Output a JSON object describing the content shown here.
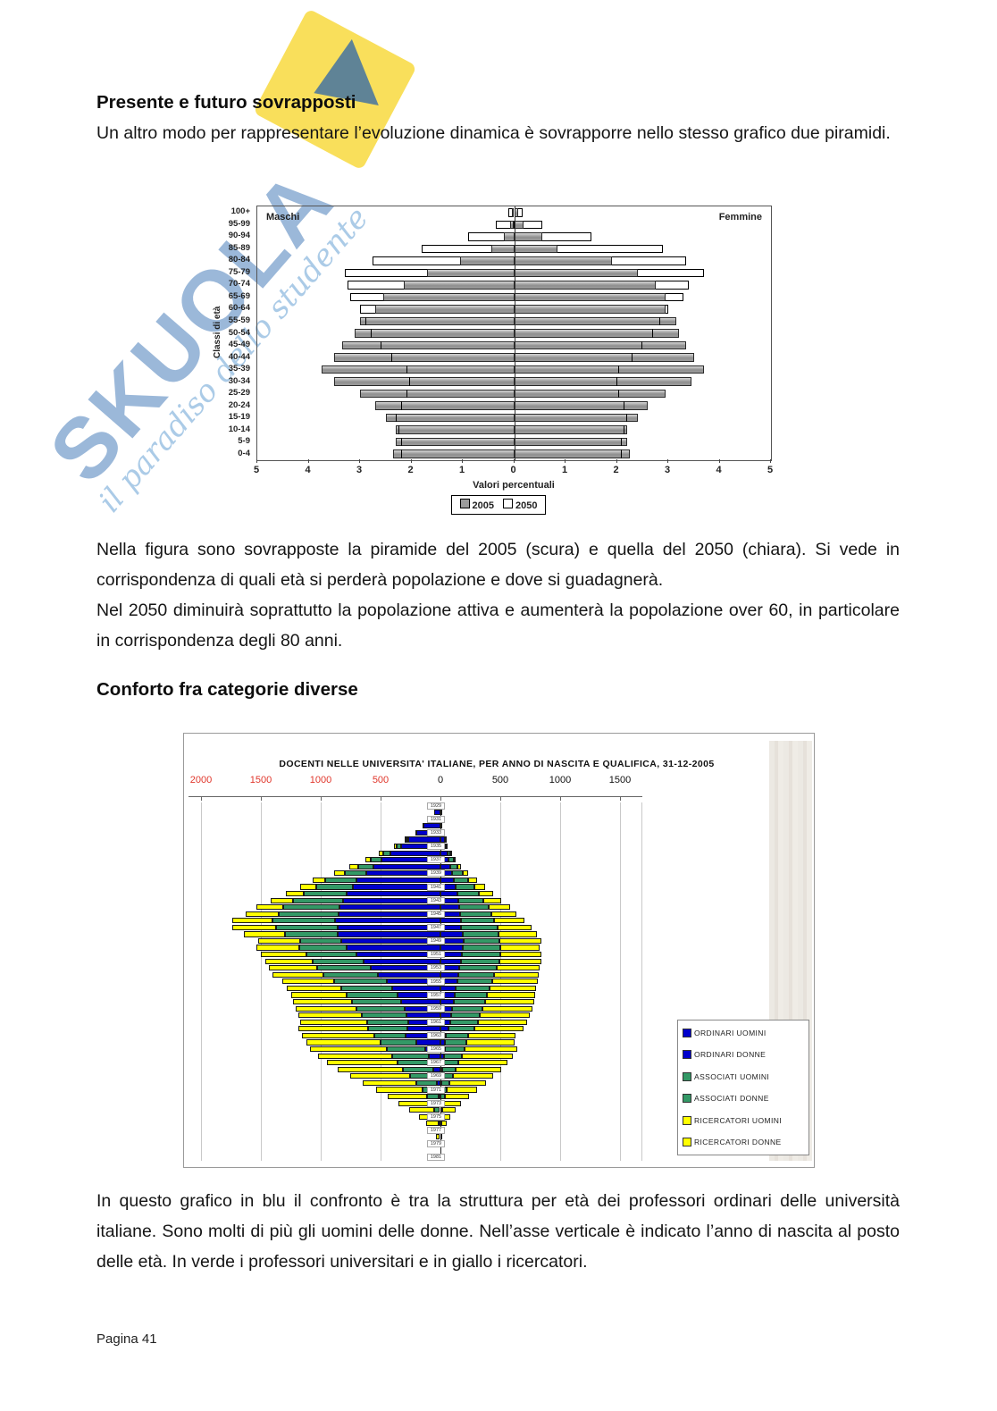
{
  "page": {
    "heading1": "Presente e futuro sovrapposti",
    "para1": "Un altro modo per rappresentare l’evoluzione dinamica è sovrapporre nello stesso grafico due piramidi.",
    "para2a": "Nella figura sono sovrapposte la piramide del 2005 (scura) e quella del 2050 (chiara). Si vede in corrispondenza di quali età si perderà popolazione e dove si guadagnerà.",
    "para2b": "Nel 2050 diminuirà soprattutto la popolazione attiva e aumenterà la popolazione over 60, in particolare in corrispondenza degli 80 anni.",
    "heading2": "Conforto fra categorie diverse",
    "para3": "In questo grafico in blu il confronto è tra la struttura per età dei professori ordinari delle università italiane. Sono molti di più gli uomini delle donne. Nell’asse verticale è indicato l’anno di nascita al posto delle età. In verde i professori universitari e in giallo i ricercatori.",
    "page_number": "Pagina 41"
  },
  "watermark": {
    "brand": "SKUOLA",
    "tagline": "il paradiso dello studente",
    "brand_color": "#2f6ab0",
    "flag_color": "#f8d93e"
  },
  "chart_data": [
    {
      "type": "bar",
      "subtype": "overlaid-population-pyramid",
      "left_label": "Maschi",
      "right_label": "Femmine",
      "ylabel": "Classi di età",
      "xlabel": "Valori percentuali",
      "legend": [
        "2005",
        "2050"
      ],
      "xticks": [
        "5",
        "4",
        "3",
        "2",
        "1",
        "0",
        "1",
        "2",
        "3",
        "4",
        "5"
      ],
      "xmax_percent": 5,
      "ages": [
        "100+",
        "95-99",
        "90-94",
        "85-89",
        "80-84",
        "75-79",
        "70-74",
        "65-69",
        "60-64",
        "55-59",
        "50-54",
        "45-49",
        "40-44",
        "35-39",
        "30-34",
        "25-29",
        "20-24",
        "15-19",
        "10-14",
        "5-9",
        "0-4"
      ],
      "maschi_2005": [
        0.04,
        0.08,
        0.2,
        0.45,
        1.05,
        1.7,
        2.15,
        2.55,
        2.7,
        3.0,
        3.1,
        3.35,
        3.5,
        3.75,
        3.5,
        3.0,
        2.7,
        2.5,
        2.3,
        2.3,
        2.35
      ],
      "femmine_2005": [
        0.08,
        0.18,
        0.55,
        0.85,
        1.9,
        2.4,
        2.75,
        2.95,
        2.95,
        3.15,
        3.2,
        3.35,
        3.5,
        3.7,
        3.45,
        2.95,
        2.6,
        2.4,
        2.2,
        2.2,
        2.25
      ],
      "maschi_2050": [
        0.12,
        0.35,
        0.9,
        1.8,
        2.75,
        3.3,
        3.25,
        3.2,
        3.0,
        2.9,
        2.8,
        2.6,
        2.4,
        2.1,
        2.05,
        2.1,
        2.2,
        2.3,
        2.25,
        2.2,
        2.2
      ],
      "femmine_2050": [
        0.17,
        0.55,
        1.5,
        2.9,
        3.35,
        3.7,
        3.4,
        3.3,
        3.0,
        2.85,
        2.7,
        2.5,
        2.3,
        2.05,
        2.0,
        2.05,
        2.15,
        2.2,
        2.15,
        2.1,
        2.1
      ],
      "colors": {
        "serie_2005": "#9c9c9c",
        "serie_2050": "#ffffff"
      }
    },
    {
      "type": "bar",
      "subtype": "stacked-pyramid-by-birth-year",
      "title": "DOCENTI NELLE UNIVERSITA' ITALIANE, PER ANNO DI NASCITA E QUALIFICA, 31-12-2005",
      "xticks": [
        -2000,
        -1500,
        -1000,
        -500,
        0,
        500,
        1000,
        1500
      ],
      "negative_tick_color": "#e0362b",
      "legend": [
        {
          "label": "ORDINARI UOMINI",
          "color": "#0000cc"
        },
        {
          "label": "ORDINARI DONNE",
          "color": "#0000cc"
        },
        {
          "label": "ASSOCIATI UOMINI",
          "color": "#339966"
        },
        {
          "label": "ASSOCIATI DONNE",
          "color": "#339966"
        },
        {
          "label": "RICERCATORI UOMINI",
          "color": "#ffff00"
        },
        {
          "label": "RICERCATORI DONNE",
          "color": "#ffff00"
        }
      ],
      "years": [
        1929,
        1930,
        1931,
        1932,
        1933,
        1934,
        1935,
        1936,
        1937,
        1938,
        1939,
        1940,
        1941,
        1942,
        1943,
        1944,
        1945,
        1946,
        1947,
        1948,
        1949,
        1950,
        1951,
        1952,
        1953,
        1954,
        1955,
        1956,
        1957,
        1958,
        1959,
        1960,
        1961,
        1962,
        1963,
        1964,
        1965,
        1966,
        1967,
        1968,
        1969,
        1970,
        1971,
        1972,
        1973,
        1974,
        1975,
        1976,
        1977,
        1978,
        1979,
        1980,
        1981
      ],
      "uomini": {
        "ordinari": [
          30,
          55,
          90,
          140,
          200,
          265,
          330,
          420,
          490,
          560,
          620,
          700,
          730,
          780,
          810,
          840,
          850,
          880,
          860,
          855,
          830,
          780,
          700,
          640,
          580,
          520,
          450,
          400,
          360,
          330,
          300,
          280,
          265,
          275,
          290,
          200,
          130,
          100,
          80,
          60,
          45,
          30,
          20,
          12,
          8,
          5,
          3,
          2,
          1,
          0,
          0,
          0,
          0
        ],
        "associati": [
          0,
          0,
          5,
          8,
          12,
          20,
          35,
          60,
          90,
          130,
          180,
          260,
          310,
          360,
          420,
          470,
          500,
          520,
          510,
          440,
          340,
          400,
          420,
          430,
          450,
          460,
          440,
          430,
          420,
          410,
          400,
          380,
          350,
          330,
          260,
          300,
          320,
          300,
          280,
          250,
          210,
          170,
          130,
          100,
          70,
          45,
          25,
          15,
          8,
          4,
          2,
          0,
          0
        ],
        "ricercatori": [
          0,
          0,
          0,
          0,
          5,
          10,
          20,
          35,
          50,
          70,
          90,
          110,
          130,
          150,
          190,
          230,
          280,
          340,
          370,
          345,
          350,
          360,
          380,
          390,
          400,
          420,
          430,
          450,
          470,
          490,
          510,
          530,
          560,
          580,
          605,
          620,
          640,
          620,
          590,
          550,
          500,
          450,
          390,
          330,
          270,
          210,
          150,
          100,
          60,
          30,
          12,
          5,
          2
        ]
      },
      "donne": {
        "ordinari": [
          5,
          8,
          12,
          18,
          25,
          35,
          45,
          60,
          70,
          85,
          100,
          115,
          130,
          140,
          150,
          160,
          165,
          170,
          175,
          185,
          195,
          190,
          180,
          170,
          160,
          150,
          140,
          130,
          120,
          110,
          100,
          90,
          80,
          70,
          45,
          40,
          35,
          28,
          22,
          17,
          12,
          8,
          5,
          3,
          2,
          1,
          1,
          0,
          0,
          0,
          0,
          0,
          0
        ],
        "associati": [
          0,
          0,
          2,
          3,
          5,
          8,
          15,
          25,
          40,
          60,
          85,
          120,
          150,
          180,
          210,
          240,
          260,
          280,
          300,
          300,
          300,
          310,
          320,
          320,
          310,
          300,
          290,
          280,
          270,
          260,
          250,
          240,
          230,
          215,
          190,
          180,
          170,
          150,
          130,
          110,
          90,
          70,
          50,
          35,
          22,
          14,
          8,
          5,
          3,
          1,
          0,
          0,
          0
        ],
        "ricercatori": [
          0,
          0,
          0,
          0,
          2,
          3,
          5,
          10,
          18,
          30,
          45,
          70,
          95,
          120,
          150,
          180,
          210,
          250,
          285,
          320,
          345,
          330,
          340,
          350,
          360,
          370,
          380,
          390,
          400,
          410,
          420,
          420,
          415,
          410,
          390,
          400,
          440,
          430,
          410,
          380,
          340,
          300,
          250,
          200,
          150,
          110,
          70,
          45,
          25,
          12,
          6,
          3,
          1
        ]
      }
    }
  ]
}
